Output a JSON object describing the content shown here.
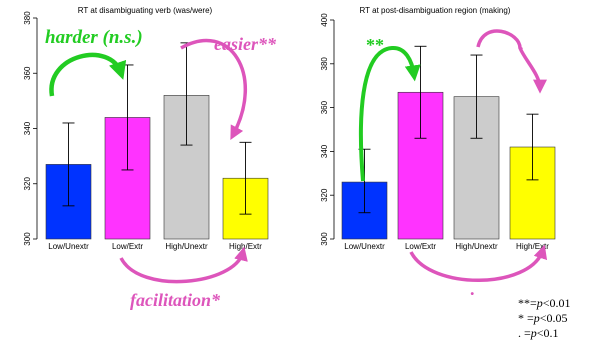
{
  "chart_data": [
    {
      "type": "bar",
      "title": "RT at disambiguating verb (was/were)",
      "xlabel": "",
      "ylabel": "",
      "ylim": [
        300,
        380
      ],
      "yticks": [
        300,
        320,
        340,
        360,
        380
      ],
      "categories": [
        "Low/Unextr",
        "Low/Extr",
        "High/Unextr",
        "High/Extr"
      ],
      "values": [
        327,
        344,
        352,
        322
      ],
      "error_low": [
        312,
        325,
        334,
        309
      ],
      "error_high": [
        342,
        363,
        371,
        335
      ],
      "colors": [
        "#0033ff",
        "#ff33ff",
        "#cccccc",
        "#ffff00"
      ],
      "annotations": [
        {
          "text": "harder (n.s.)",
          "color": "#22cc22"
        },
        {
          "text": "easier**",
          "color": "#dd55bb"
        },
        {
          "text": "facilitation*",
          "color": "#dd55bb"
        }
      ]
    },
    {
      "type": "bar",
      "title": "RT at post-disambiguation region (making)",
      "xlabel": "",
      "ylabel": "",
      "ylim": [
        300,
        400
      ],
      "yticks": [
        300,
        320,
        340,
        360,
        380,
        400
      ],
      "categories": [
        "Low/Unextr",
        "Low/Extr",
        "High/Unextr",
        "High/Extr"
      ],
      "values": [
        326,
        367,
        365,
        342
      ],
      "error_low": [
        312,
        346,
        346,
        327
      ],
      "error_high": [
        341,
        388,
        384,
        357
      ],
      "colors": [
        "#0033ff",
        "#ff33ff",
        "#cccccc",
        "#ffff00"
      ],
      "annotations": [
        {
          "text": "**",
          "color": "#22cc22"
        },
        {
          "text": ".",
          "color": "#dd55bb"
        },
        {
          "text": ".",
          "color": "#dd55bb"
        }
      ]
    }
  ],
  "legend_notes": [
    {
      "mark": "**=",
      "p": "p",
      "rest": "<0.01"
    },
    {
      "mark": "*  =",
      "p": "p",
      "rest": "<0.05"
    },
    {
      "mark": ".  =",
      "p": "p",
      "rest": "<0.1"
    }
  ]
}
